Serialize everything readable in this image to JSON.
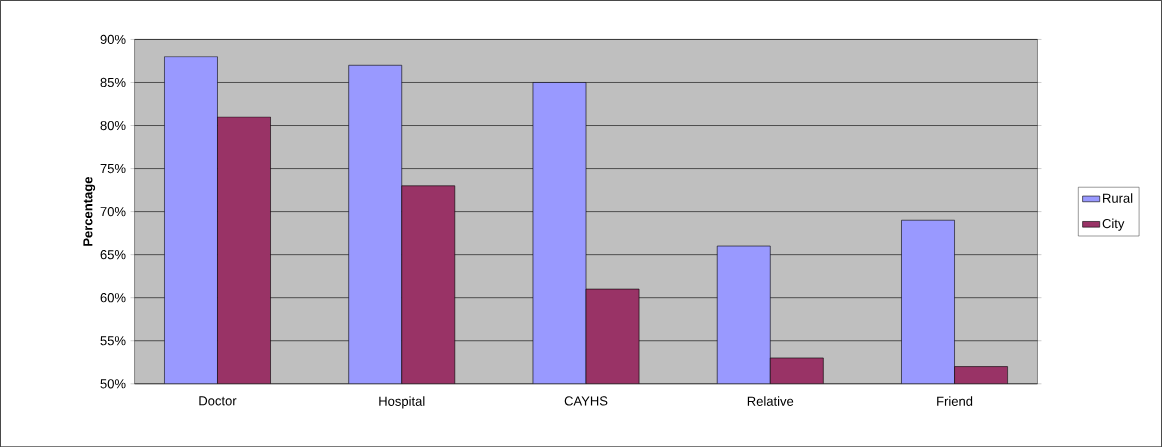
{
  "chart_data": {
    "type": "bar",
    "ylabel": "Percentage",
    "categories": [
      "Doctor",
      "Hospital",
      "CAYHS",
      "Relative",
      "Friend"
    ],
    "series": [
      {
        "name": "Rural",
        "color": "#9999ff",
        "values": [
          88,
          87,
          85,
          66,
          69
        ]
      },
      {
        "name": "City",
        "color": "#993366",
        "values": [
          81,
          73,
          61,
          53,
          52
        ]
      }
    ],
    "ylim": [
      50,
      90
    ],
    "yticks": [
      {
        "value": 50,
        "label": "50%"
      },
      {
        "value": 55,
        "label": "55%"
      },
      {
        "value": 60,
        "label": "60%"
      },
      {
        "value": 65,
        "label": "65%"
      },
      {
        "value": 70,
        "label": "70%"
      },
      {
        "value": 75,
        "label": "75%"
      },
      {
        "value": 80,
        "label": "80%"
      },
      {
        "value": 85,
        "label": "85%"
      },
      {
        "value": 90,
        "label": "90%"
      }
    ],
    "grid": "y",
    "legend": "right"
  }
}
